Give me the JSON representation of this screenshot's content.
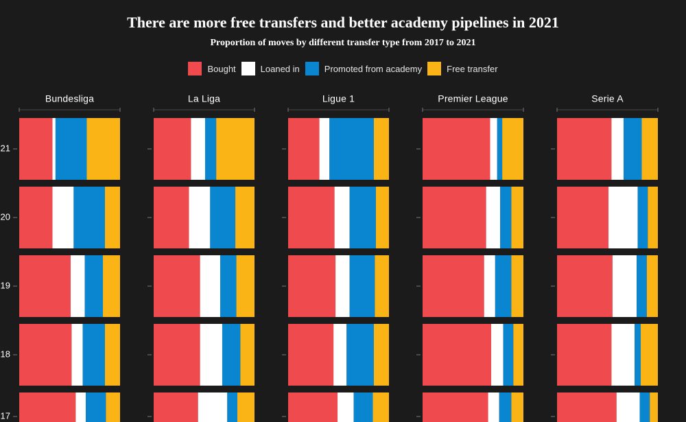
{
  "chart_data": {
    "type": "bar",
    "orientation": "horizontal",
    "stacked": "percent",
    "title": "There are more free transfers and better academy pipelines in 2021",
    "subtitle": "Proportion of moves by different transfer type from 2017 to 2021",
    "xlabel": "",
    "ylabel": "",
    "xlim": [
      0,
      100
    ],
    "grid": false,
    "categories": [
      "2021",
      "2020",
      "2019",
      "2018",
      "2017"
    ],
    "legend": {
      "position": "top",
      "entries": [
        "Bought",
        "Loaned in",
        "Promoted from academy",
        "Free transfer"
      ]
    },
    "colors": {
      "background": "#1b1b1b",
      "Bought": "#ef4b4f",
      "Loaned in": "#ffffff",
      "Promoted from academy": "#0a85cf",
      "Free transfer": "#fbb416"
    },
    "panels": [
      {
        "facet": "Bundesliga",
        "series": [
          {
            "name": "Bought",
            "values": [
              33,
              33,
              51,
              52,
              56
            ]
          },
          {
            "name": "Loaned in",
            "values": [
              3,
              21,
              14,
              11,
              10
            ]
          },
          {
            "name": "Promoted from academy",
            "values": [
              31,
              31,
              18,
              22,
              20
            ]
          },
          {
            "name": "Free transfer",
            "values": [
              33,
              15,
              17,
              15,
              14
            ]
          }
        ]
      },
      {
        "facet": "La Liga",
        "series": [
          {
            "name": "Bought",
            "values": [
              37,
              35,
              46,
              46,
              44
            ]
          },
          {
            "name": "Loaned in",
            "values": [
              14,
              21,
              20,
              22,
              29
            ]
          },
          {
            "name": "Promoted from academy",
            "values": [
              11,
              25,
              16,
              18,
              10
            ]
          },
          {
            "name": "Free transfer",
            "values": [
              38,
              19,
              18,
              14,
              17
            ]
          }
        ]
      },
      {
        "facet": "Ligue 1",
        "series": [
          {
            "name": "Bought",
            "values": [
              31,
              46,
              47,
              45,
              49
            ]
          },
          {
            "name": "Loaned in",
            "values": [
              10,
              15,
              14,
              13,
              16
            ]
          },
          {
            "name": "Promoted from academy",
            "values": [
              44,
              26,
              25,
              27,
              19
            ]
          },
          {
            "name": "Free transfer",
            "values": [
              15,
              13,
              14,
              15,
              16
            ]
          }
        ]
      },
      {
        "facet": "Premier League",
        "series": [
          {
            "name": "Bought",
            "values": [
              67,
              63,
              61,
              68,
              65
            ]
          },
          {
            "name": "Loaned in",
            "values": [
              7,
              14,
              11,
              12,
              11
            ]
          },
          {
            "name": "Promoted from academy",
            "values": [
              5,
              11,
              16,
              10,
              12
            ]
          },
          {
            "name": "Free transfer",
            "values": [
              21,
              12,
              12,
              10,
              12
            ]
          }
        ]
      },
      {
        "facet": "Serie A",
        "series": [
          {
            "name": "Bought",
            "values": [
              54,
              51,
              55,
              54,
              59
            ]
          },
          {
            "name": "Loaned in",
            "values": [
              12,
              29,
              24,
              23,
              23
            ]
          },
          {
            "name": "Promoted from academy",
            "values": [
              18,
              10,
              10,
              6,
              10
            ]
          },
          {
            "name": "Free transfer",
            "values": [
              16,
              10,
              11,
              17,
              8
            ]
          }
        ]
      }
    ]
  }
}
